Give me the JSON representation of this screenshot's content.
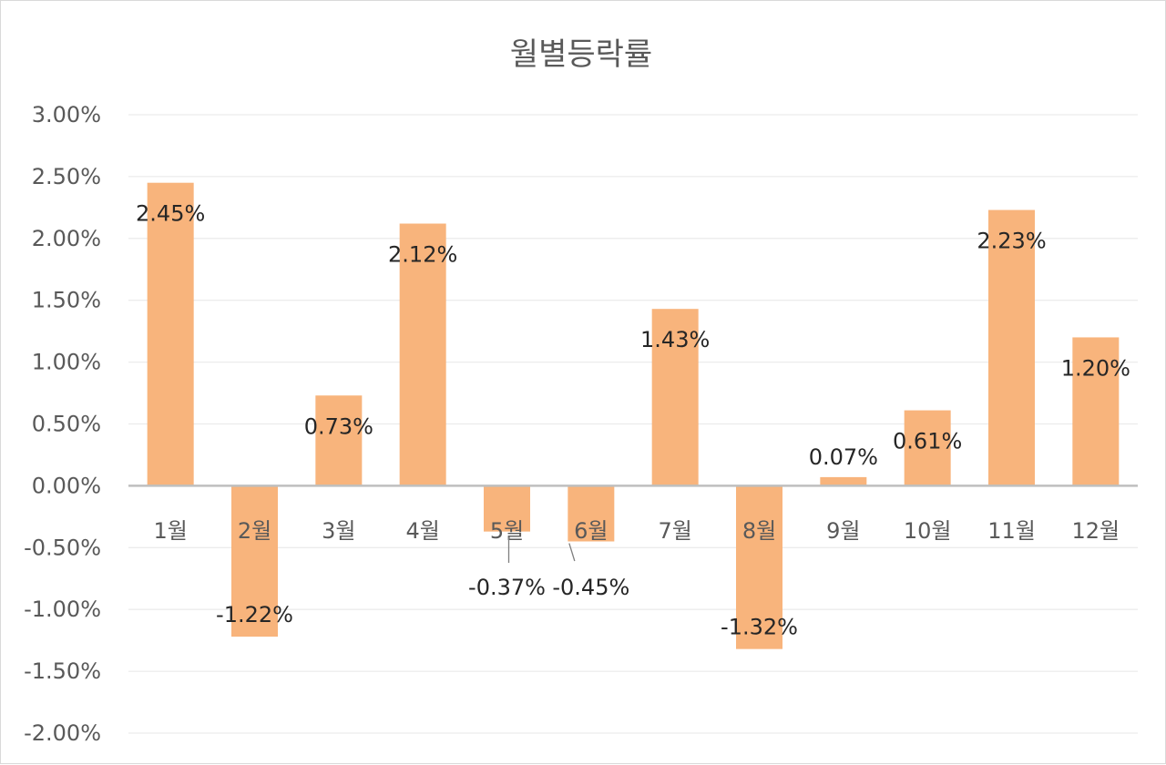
{
  "chart_data": {
    "type": "bar",
    "title": "월별등락률",
    "categories": [
      "1월",
      "2월",
      "3월",
      "4월",
      "5월",
      "6월",
      "7월",
      "8월",
      "9월",
      "10월",
      "11월",
      "12월"
    ],
    "values": [
      2.45,
      -1.22,
      0.73,
      2.12,
      -0.37,
      -0.45,
      1.43,
      -1.32,
      0.07,
      0.61,
      2.23,
      1.2
    ],
    "data_labels": [
      "2.45%",
      "-1.22%",
      "0.73%",
      "2.12%",
      "-0.37%",
      "-0.45%",
      "1.43%",
      "-1.32%",
      "0.07%",
      "0.61%",
      "2.23%",
      "1.20%"
    ],
    "y_ticks": [
      "3.00%",
      "2.50%",
      "2.00%",
      "1.50%",
      "1.00%",
      "0.50%",
      "0.00%",
      "-0.50%",
      "-1.00%",
      "-1.50%",
      "-2.00%"
    ],
    "ylim": [
      -2.0,
      3.0
    ],
    "y_step": 0.5,
    "grid": true,
    "legend": "none",
    "bar_color": "#f8b47c"
  }
}
